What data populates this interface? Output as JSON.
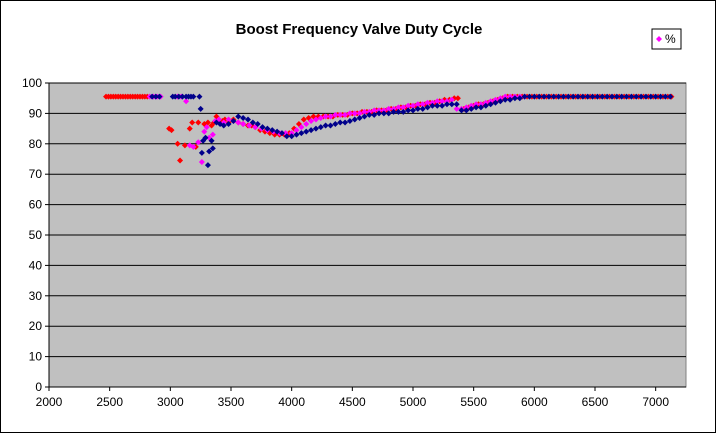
{
  "chart_data": {
    "type": "scatter",
    "title": "Boost Frequency Valve Duty Cycle",
    "xlabel": "",
    "ylabel": "",
    "xlim": [
      2000,
      7250
    ],
    "ylim": [
      0,
      100
    ],
    "xticks": [
      2000,
      2500,
      3000,
      3500,
      4000,
      4500,
      5000,
      5500,
      6000,
      6500,
      7000
    ],
    "yticks": [
      0,
      10,
      20,
      30,
      40,
      50,
      60,
      70,
      80,
      90,
      100
    ],
    "grid": "horizontal",
    "plot_background": "#c0c0c0",
    "legend": {
      "position": "top-right",
      "entries": [
        {
          "label": "%",
          "color": "#ff00ff"
        }
      ]
    },
    "series": [
      {
        "color": "#ff0000",
        "points": [
          [
            2470,
            95.5
          ],
          [
            2490,
            95.5
          ],
          [
            2510,
            95.5
          ],
          [
            2530,
            95.5
          ],
          [
            2550,
            95.5
          ],
          [
            2570,
            95.5
          ],
          [
            2590,
            95.5
          ],
          [
            2610,
            95.5
          ],
          [
            2630,
            95.5
          ],
          [
            2650,
            95.5
          ],
          [
            2670,
            95.5
          ],
          [
            2690,
            95.5
          ],
          [
            2710,
            95.5
          ],
          [
            2730,
            95.5
          ],
          [
            2750,
            95.5
          ],
          [
            2770,
            95.5
          ],
          [
            2790,
            95.5
          ],
          [
            2810,
            95.5
          ],
          [
            2990,
            85
          ],
          [
            3010,
            84.5
          ],
          [
            3060,
            80
          ],
          [
            3080,
            74.5
          ],
          [
            3120,
            79.5
          ],
          [
            3160,
            85
          ],
          [
            3180,
            87
          ],
          [
            3210,
            79
          ],
          [
            3230,
            87
          ],
          [
            3280,
            86.5
          ],
          [
            3310,
            87
          ],
          [
            3340,
            86
          ],
          [
            3360,
            87
          ],
          [
            3380,
            89
          ],
          [
            3400,
            88
          ],
          [
            3430,
            87.5
          ],
          [
            3450,
            88
          ],
          [
            3480,
            87
          ],
          [
            3520,
            88
          ],
          [
            3560,
            87
          ],
          [
            3600,
            86.5
          ],
          [
            3640,
            86
          ],
          [
            3670,
            86
          ],
          [
            3700,
            85.5
          ],
          [
            3740,
            84.5
          ],
          [
            3780,
            84
          ],
          [
            3820,
            83.5
          ],
          [
            3860,
            83
          ],
          [
            3900,
            83
          ],
          [
            3940,
            83
          ],
          [
            3980,
            83.5
          ],
          [
            4020,
            85
          ],
          [
            4060,
            86.5
          ],
          [
            4100,
            88
          ],
          [
            4140,
            88.5
          ],
          [
            4180,
            89
          ],
          [
            4220,
            89
          ],
          [
            4260,
            89
          ],
          [
            4300,
            89
          ],
          [
            4340,
            89
          ],
          [
            4380,
            89.5
          ],
          [
            4420,
            89.5
          ],
          [
            4460,
            89.5
          ],
          [
            4500,
            90
          ],
          [
            4540,
            90
          ],
          [
            4580,
            90.5
          ],
          [
            4620,
            90.5
          ],
          [
            4660,
            90.5
          ],
          [
            4700,
            91
          ],
          [
            4740,
            91
          ],
          [
            4780,
            91
          ],
          [
            4820,
            91.5
          ],
          [
            4860,
            91.5
          ],
          [
            4900,
            92
          ],
          [
            4940,
            92
          ],
          [
            4980,
            92.5
          ],
          [
            5020,
            92.5
          ],
          [
            5060,
            93
          ],
          [
            5100,
            93
          ],
          [
            5140,
            93.5
          ],
          [
            5180,
            93.5
          ],
          [
            5220,
            94
          ],
          [
            5260,
            94.5
          ],
          [
            5300,
            94.5
          ],
          [
            5340,
            95
          ],
          [
            5370,
            95
          ],
          [
            5420,
            91.5
          ],
          [
            5460,
            92
          ],
          [
            5500,
            92.5
          ],
          [
            5540,
            93
          ],
          [
            5580,
            93
          ],
          [
            5620,
            93.5
          ],
          [
            5660,
            94
          ],
          [
            5700,
            94.5
          ],
          [
            5740,
            95
          ],
          [
            5780,
            95.5
          ],
          [
            5820,
            95.5
          ],
          [
            5860,
            95.5
          ],
          [
            5900,
            95.5
          ],
          [
            5940,
            95.5
          ],
          [
            5980,
            95.5
          ],
          [
            6020,
            95.5
          ],
          [
            6060,
            95.5
          ],
          [
            6100,
            95.5
          ],
          [
            6140,
            95.5
          ],
          [
            6180,
            95.5
          ],
          [
            6220,
            95.5
          ],
          [
            6260,
            95.5
          ],
          [
            6300,
            95.5
          ],
          [
            6340,
            95.5
          ],
          [
            6380,
            95.5
          ],
          [
            6420,
            95.5
          ],
          [
            6460,
            95.5
          ],
          [
            6500,
            95.5
          ],
          [
            6540,
            95.5
          ],
          [
            6580,
            95.5
          ],
          [
            6620,
            95.5
          ],
          [
            6660,
            95.5
          ],
          [
            6700,
            95.5
          ],
          [
            6740,
            95.5
          ],
          [
            6780,
            95.5
          ],
          [
            6820,
            95.5
          ],
          [
            6860,
            95.5
          ],
          [
            6900,
            95.5
          ],
          [
            6940,
            95.5
          ],
          [
            6980,
            95.5
          ],
          [
            7020,
            95.5
          ],
          [
            7060,
            95.5
          ],
          [
            7100,
            95.5
          ],
          [
            7130,
            95.5
          ]
        ]
      },
      {
        "color": "#ff00ff",
        "points": [
          [
            2830,
            95.5
          ],
          [
            2860,
            95.5
          ],
          [
            2890,
            95.5
          ],
          [
            2920,
            95.5
          ],
          [
            3060,
            95.5
          ],
          [
            3090,
            95.5
          ],
          [
            3130,
            94
          ],
          [
            3160,
            79.5
          ],
          [
            3190,
            79
          ],
          [
            3230,
            80.5
          ],
          [
            3260,
            74
          ],
          [
            3280,
            84
          ],
          [
            3300,
            85.5
          ],
          [
            3320,
            82
          ],
          [
            3350,
            83
          ],
          [
            3370,
            87.5
          ],
          [
            3400,
            88
          ],
          [
            3440,
            87
          ],
          [
            3480,
            88
          ],
          [
            3520,
            87.5
          ],
          [
            3560,
            87
          ],
          [
            3600,
            86.5
          ],
          [
            3650,
            86
          ],
          [
            3700,
            85.5
          ],
          [
            3750,
            85
          ],
          [
            3800,
            84.5
          ],
          [
            3850,
            84
          ],
          [
            3900,
            83.5
          ],
          [
            3950,
            83.5
          ],
          [
            4000,
            83.5
          ],
          [
            4040,
            84.5
          ],
          [
            4080,
            85.5
          ],
          [
            4120,
            86.5
          ],
          [
            4160,
            87.5
          ],
          [
            4200,
            88
          ],
          [
            4240,
            88.5
          ],
          [
            4280,
            89
          ],
          [
            4320,
            89
          ],
          [
            4360,
            89.5
          ],
          [
            4400,
            89.5
          ],
          [
            4440,
            89.5
          ],
          [
            4480,
            90
          ],
          [
            4520,
            90
          ],
          [
            4560,
            90
          ],
          [
            4600,
            90.5
          ],
          [
            4640,
            90.5
          ],
          [
            4680,
            91
          ],
          [
            4720,
            91
          ],
          [
            4760,
            91
          ],
          [
            4800,
            91.5
          ],
          [
            4840,
            91.5
          ],
          [
            4880,
            92
          ],
          [
            4920,
            92
          ],
          [
            4960,
            92.5
          ],
          [
            5000,
            92.5
          ],
          [
            5040,
            93
          ],
          [
            5080,
            93
          ],
          [
            5120,
            93.5
          ],
          [
            5160,
            93.5
          ],
          [
            5200,
            94
          ],
          [
            5240,
            94
          ],
          [
            5280,
            94
          ],
          [
            5320,
            94.5
          ],
          [
            5360,
            91.5
          ],
          [
            5400,
            91.5
          ],
          [
            5440,
            92
          ],
          [
            5480,
            92.5
          ],
          [
            5520,
            93
          ],
          [
            5560,
            93
          ],
          [
            5600,
            93.5
          ],
          [
            5640,
            94
          ],
          [
            5680,
            94.5
          ],
          [
            5720,
            95
          ],
          [
            5760,
            95.5
          ],
          [
            5800,
            95.5
          ],
          [
            5840,
            95.5
          ],
          [
            5880,
            95.5
          ],
          [
            5920,
            95.5
          ]
        ]
      },
      {
        "color": "#00008b",
        "points": [
          [
            2850,
            95.5
          ],
          [
            2880,
            95.5
          ],
          [
            2910,
            95.5
          ],
          [
            3020,
            95.5
          ],
          [
            3040,
            95.5
          ],
          [
            3070,
            95.5
          ],
          [
            3100,
            95.5
          ],
          [
            3130,
            95.5
          ],
          [
            3150,
            95.5
          ],
          [
            3170,
            95.5
          ],
          [
            3190,
            95.5
          ],
          [
            3240,
            95.5
          ],
          [
            3250,
            91.5
          ],
          [
            3260,
            77
          ],
          [
            3270,
            81
          ],
          [
            3290,
            82
          ],
          [
            3310,
            73
          ],
          [
            3320,
            77.5
          ],
          [
            3340,
            81
          ],
          [
            3350,
            78.5
          ],
          [
            3380,
            87
          ],
          [
            3410,
            86.5
          ],
          [
            3440,
            86
          ],
          [
            3480,
            86.5
          ],
          [
            3520,
            87.5
          ],
          [
            3560,
            89
          ],
          [
            3600,
            88.5
          ],
          [
            3640,
            88
          ],
          [
            3680,
            87
          ],
          [
            3720,
            86.5
          ],
          [
            3760,
            85.5
          ],
          [
            3800,
            85
          ],
          [
            3840,
            84.5
          ],
          [
            3880,
            84
          ],
          [
            3920,
            83.5
          ],
          [
            3960,
            82.5
          ],
          [
            4000,
            82.5
          ],
          [
            4040,
            83
          ],
          [
            4080,
            83.5
          ],
          [
            4120,
            84
          ],
          [
            4160,
            84.5
          ],
          [
            4200,
            85
          ],
          [
            4240,
            85.5
          ],
          [
            4280,
            86
          ],
          [
            4320,
            86
          ],
          [
            4360,
            86.5
          ],
          [
            4400,
            87
          ],
          [
            4440,
            87
          ],
          [
            4480,
            87.5
          ],
          [
            4520,
            88
          ],
          [
            4560,
            88.5
          ],
          [
            4600,
            89
          ],
          [
            4640,
            89.5
          ],
          [
            4680,
            89.5
          ],
          [
            4720,
            90
          ],
          [
            4760,
            90
          ],
          [
            4800,
            90
          ],
          [
            4840,
            90.5
          ],
          [
            4880,
            90.5
          ],
          [
            4920,
            90.5
          ],
          [
            4960,
            91
          ],
          [
            5000,
            91
          ],
          [
            5040,
            91.5
          ],
          [
            5080,
            91.5
          ],
          [
            5120,
            92
          ],
          [
            5160,
            92.5
          ],
          [
            5200,
            92.5
          ],
          [
            5240,
            92.5
          ],
          [
            5280,
            93
          ],
          [
            5320,
            93
          ],
          [
            5360,
            93
          ],
          [
            5400,
            91
          ],
          [
            5440,
            91
          ],
          [
            5480,
            91.5
          ],
          [
            5520,
            92
          ],
          [
            5560,
            92
          ],
          [
            5600,
            92.5
          ],
          [
            5640,
            93
          ],
          [
            5680,
            93.5
          ],
          [
            5720,
            94
          ],
          [
            5760,
            94.5
          ],
          [
            5800,
            94.5
          ],
          [
            5840,
            95
          ],
          [
            5880,
            95
          ],
          [
            5920,
            95.5
          ],
          [
            5960,
            95.5
          ],
          [
            6000,
            95.5
          ],
          [
            6040,
            95.5
          ],
          [
            6080,
            95.5
          ],
          [
            6120,
            95.5
          ],
          [
            6160,
            95.5
          ],
          [
            6200,
            95.5
          ],
          [
            6240,
            95.5
          ],
          [
            6280,
            95.5
          ],
          [
            6320,
            95.5
          ],
          [
            6360,
            95.5
          ],
          [
            6400,
            95.5
          ],
          [
            6440,
            95.5
          ],
          [
            6480,
            95.5
          ],
          [
            6520,
            95.5
          ],
          [
            6560,
            95.5
          ],
          [
            6600,
            95.5
          ],
          [
            6640,
            95.5
          ],
          [
            6680,
            95.5
          ],
          [
            6720,
            95.5
          ],
          [
            6760,
            95.5
          ],
          [
            6800,
            95.5
          ],
          [
            6840,
            95.5
          ],
          [
            6880,
            95.5
          ],
          [
            6920,
            95.5
          ],
          [
            6960,
            95.5
          ],
          [
            7000,
            95.5
          ],
          [
            7040,
            95.5
          ],
          [
            7080,
            95.5
          ],
          [
            7120,
            95.5
          ]
        ]
      }
    ]
  }
}
